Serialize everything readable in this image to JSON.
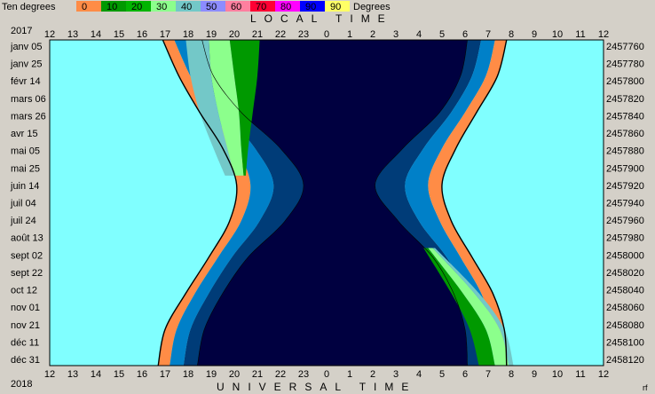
{
  "chart_data": {
    "type": "area",
    "legend": {
      "left_label": "Ten degrees",
      "right_label": "Degrees",
      "items": [
        {
          "label": "0",
          "color": "#ff8c46"
        },
        {
          "label": "10",
          "color": "#009900"
        },
        {
          "label": "20",
          "color": "#00b400"
        },
        {
          "label": "30",
          "color": "#8cff8c"
        },
        {
          "label": "40",
          "color": "#73c8c8"
        },
        {
          "label": "50",
          "color": "#8c8cff"
        },
        {
          "label": "60",
          "color": "#ff7f9f"
        },
        {
          "label": "70",
          "color": "#ff0033"
        },
        {
          "label": "80",
          "color": "#ff00ff"
        },
        {
          "label": "90",
          "color": "#0000ff"
        },
        {
          "label": "90",
          "color": "#ffff66"
        }
      ]
    },
    "top_axis_title": "LOCAL TIME",
    "bottom_axis_title": "UNIVERSAL TIME",
    "year_top": "2017",
    "year_bottom": "2018",
    "corner_label": "rf",
    "hour_ticks": [
      "12",
      "13",
      "14",
      "15",
      "16",
      "17",
      "18",
      "19",
      "20",
      "21",
      "22",
      "23",
      "0",
      "1",
      "2",
      "3",
      "4",
      "5",
      "6",
      "7",
      "8",
      "9",
      "10",
      "11",
      "12"
    ],
    "date_labels": [
      "janv 05",
      "janv 25",
      "févr 14",
      "mars 06",
      "mars 26",
      "avr 15",
      "mai 05",
      "mai 25",
      "juin 14",
      "juil 04",
      "juil 24",
      "août 13",
      "sept 02",
      "sept 22",
      "oct 12",
      "nov 01",
      "nov 21",
      "déc 11",
      "déc 31"
    ],
    "jd_labels": [
      "2457760",
      "2457780",
      "2457800",
      "2457820",
      "2457840",
      "2457860",
      "2457880",
      "2457900",
      "2457920",
      "2457940",
      "2457960",
      "2457980",
      "2458000",
      "2458020",
      "2458040",
      "2458060",
      "2458080",
      "2458100",
      "2458120"
    ],
    "ylim": [
      2457760,
      2458120
    ],
    "xlim": [
      12,
      36
    ],
    "colors": {
      "day": "#80ffff",
      "night": "#000040",
      "astronomical": "#003c78",
      "nautical": "#0080c8",
      "civil": "#ff8c46",
      "alt_band_1": "#009900",
      "alt_band_2": "#8cff8c",
      "alt_band_3": "#73c8c8"
    },
    "boundaries_description_note": "",
    "jd_samples": [
      2457760,
      2457800,
      2457840,
      2457880,
      2457920,
      2457960,
      2458000,
      2458040,
      2458080,
      2458120
    ],
    "evening": {
      "sunset": [
        16.9,
        17.6,
        18.5,
        19.5,
        20.1,
        19.8,
        18.9,
        17.9,
        17.0,
        16.7
      ],
      "civil_end": [
        17.4,
        18.1,
        19.0,
        20.1,
        20.7,
        20.3,
        19.3,
        18.3,
        17.5,
        17.2
      ],
      "nautical_end": [
        18.0,
        18.6,
        19.6,
        20.9,
        21.7,
        21.1,
        19.9,
        18.9,
        18.1,
        17.8
      ],
      "astro_end": [
        18.6,
        19.1,
        20.3,
        22.0,
        23.0,
        22.2,
        20.6,
        19.5,
        18.7,
        18.4
      ]
    },
    "morning": {
      "astro_start": [
        30.1,
        29.8,
        28.9,
        27.3,
        26.1,
        27.1,
        28.6,
        29.5,
        30.0,
        30.1
      ],
      "nautical_start": [
        30.7,
        30.3,
        29.4,
        28.2,
        27.4,
        28.0,
        29.2,
        30.1,
        30.6,
        30.7
      ],
      "civil_start": [
        31.3,
        30.9,
        30.0,
        29.0,
        28.4,
        28.9,
        29.8,
        30.7,
        31.2,
        31.3
      ],
      "sunrise": [
        31.8,
        31.4,
        30.5,
        29.6,
        29.0,
        29.4,
        30.3,
        31.2,
        31.7,
        31.8
      ]
    },
    "altitude_overlays": [
      {
        "season": "early",
        "jd": [
          2457760,
          2457800,
          2457840,
          2457880,
          2457910
        ],
        "band1_from": [
          19.8,
          20.0,
          20.2,
          20.3,
          20.4
        ],
        "band1_to": [
          21.1,
          21.0,
          20.8,
          20.6,
          20.5
        ],
        "band2_from": [
          18.9,
          19.0,
          19.3,
          19.7,
          20.0
        ],
        "band2_to": [
          19.8,
          20.0,
          20.2,
          20.3,
          20.4
        ],
        "band3_from": [
          17.9,
          18.1,
          18.5,
          19.1,
          19.6
        ],
        "band3_to": [
          18.9,
          19.0,
          19.3,
          19.7,
          20.0
        ]
      },
      {
        "season": "late",
        "jd": [
          2457990,
          2458040,
          2458080,
          2458120
        ],
        "band1_from": [
          28.2,
          29.4,
          30.2,
          30.6
        ],
        "band1_to": [
          28.4,
          29.9,
          30.9,
          31.3
        ],
        "band2_from": [
          28.4,
          29.9,
          30.9,
          31.3
        ],
        "band2_to": [
          28.6,
          30.4,
          31.5,
          31.9
        ],
        "band3_from": [
          28.6,
          30.4,
          31.5,
          31.9
        ],
        "band3_to": [
          28.7,
          30.6,
          31.7,
          32.1
        ]
      }
    ]
  }
}
